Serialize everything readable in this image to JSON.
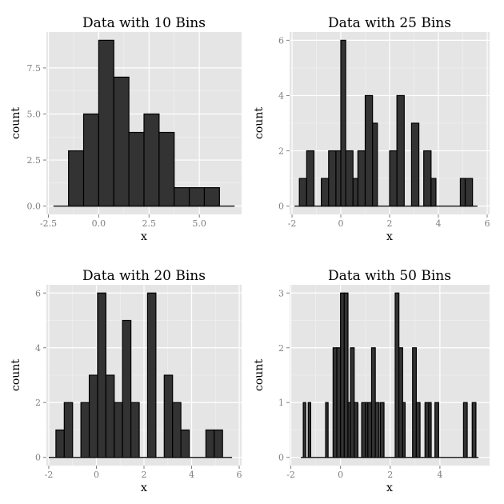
{
  "chart_data": [
    {
      "type": "bar",
      "title": "Data with 10 Bins",
      "xlabel": "x",
      "ylabel": "count",
      "xlim": [
        -2.6,
        7.1
      ],
      "ylim": [
        -0.45,
        9.45
      ],
      "xticks": [
        -2.5,
        0.0,
        2.5,
        5.0
      ],
      "xtick_labels": [
        "-2.5",
        "0.0",
        "2.5",
        "5.0"
      ],
      "yticks": [
        0.0,
        2.5,
        5.0,
        7.5
      ],
      "ytick_labels": [
        "0.0",
        "2.5",
        "5.0",
        "7.5"
      ],
      "baseline_range": [
        -2.25,
        6.75
      ],
      "bins": [
        {
          "x0": -1.5,
          "x1": -0.75,
          "count": 3
        },
        {
          "x0": -0.75,
          "x1": 0.0,
          "count": 5
        },
        {
          "x0": 0.0,
          "x1": 0.75,
          "count": 9
        },
        {
          "x0": 0.75,
          "x1": 1.5,
          "count": 7
        },
        {
          "x0": 1.5,
          "x1": 2.25,
          "count": 4
        },
        {
          "x0": 2.25,
          "x1": 3.0,
          "count": 5
        },
        {
          "x0": 3.0,
          "x1": 3.75,
          "count": 4
        },
        {
          "x0": 3.75,
          "x1": 4.5,
          "count": 1
        },
        {
          "x0": 4.5,
          "x1": 5.25,
          "count": 1
        },
        {
          "x0": 5.25,
          "x1": 6.0,
          "count": 1
        }
      ]
    },
    {
      "type": "bar",
      "title": "Data with 25 Bins",
      "xlabel": "x",
      "ylabel": "count",
      "xlim": [
        -2.1,
        6.1
      ],
      "ylim": [
        -0.3,
        6.3
      ],
      "xticks": [
        -2,
        0,
        2,
        4,
        6
      ],
      "xtick_labels": [
        "-2",
        "0",
        "2",
        "4",
        "6"
      ],
      "yticks": [
        0,
        2,
        4,
        6
      ],
      "ytick_labels": [
        "0",
        "2",
        "4",
        "6"
      ],
      "baseline_range": [
        -1.9,
        5.6
      ],
      "bins": [
        {
          "x0": -1.7,
          "x1": -1.4,
          "count": 1
        },
        {
          "x0": -1.4,
          "x1": -1.1,
          "count": 2
        },
        {
          "x0": -0.8,
          "x1": -0.5,
          "count": 1
        },
        {
          "x0": -0.5,
          "x1": -0.2,
          "count": 2
        },
        {
          "x0": -0.2,
          "x1": 0.0,
          "count": 2
        },
        {
          "x0": 0.0,
          "x1": 0.2,
          "count": 6
        },
        {
          "x0": 0.2,
          "x1": 0.5,
          "count": 2
        },
        {
          "x0": 0.5,
          "x1": 0.7,
          "count": 1
        },
        {
          "x0": 0.7,
          "x1": 1.0,
          "count": 2
        },
        {
          "x0": 1.0,
          "x1": 1.3,
          "count": 4
        },
        {
          "x0": 1.3,
          "x1": 1.5,
          "count": 3
        },
        {
          "x0": 2.0,
          "x1": 2.3,
          "count": 2
        },
        {
          "x0": 2.3,
          "x1": 2.6,
          "count": 4
        },
        {
          "x0": 2.9,
          "x1": 3.2,
          "count": 3
        },
        {
          "x0": 3.4,
          "x1": 3.7,
          "count": 2
        },
        {
          "x0": 3.7,
          "x1": 3.9,
          "count": 1
        },
        {
          "x0": 4.9,
          "x1": 5.1,
          "count": 1
        },
        {
          "x0": 5.1,
          "x1": 5.4,
          "count": 1
        }
      ]
    },
    {
      "type": "bar",
      "title": "Data with 20 Bins",
      "xlabel": "x",
      "ylabel": "count",
      "xlim": [
        -2.1,
        6.1
      ],
      "ylim": [
        -0.3,
        6.3
      ],
      "xticks": [
        -2,
        0,
        2,
        4,
        6
      ],
      "xtick_labels": [
        "-2",
        "0",
        "2",
        "4",
        "6"
      ],
      "yticks": [
        0,
        2,
        4,
        6
      ],
      "ytick_labels": [
        "0",
        "2",
        "4",
        "6"
      ],
      "baseline_range": [
        -2.0,
        5.7
      ],
      "bins": [
        {
          "x0": -1.7,
          "x1": -1.35,
          "count": 1
        },
        {
          "x0": -1.35,
          "x1": -1.0,
          "count": 2
        },
        {
          "x0": -0.65,
          "x1": -0.3,
          "count": 2
        },
        {
          "x0": -0.3,
          "x1": 0.05,
          "count": 3
        },
        {
          "x0": 0.05,
          "x1": 0.4,
          "count": 6
        },
        {
          "x0": 0.4,
          "x1": 0.75,
          "count": 3
        },
        {
          "x0": 0.75,
          "x1": 1.1,
          "count": 2
        },
        {
          "x0": 1.1,
          "x1": 1.45,
          "count": 5
        },
        {
          "x0": 1.45,
          "x1": 1.8,
          "count": 2
        },
        {
          "x0": 2.15,
          "x1": 2.5,
          "count": 6
        },
        {
          "x0": 2.85,
          "x1": 3.2,
          "count": 3
        },
        {
          "x0": 3.2,
          "x1": 3.55,
          "count": 2
        },
        {
          "x0": 3.55,
          "x1": 3.9,
          "count": 1
        },
        {
          "x0": 4.6,
          "x1": 4.95,
          "count": 1
        },
        {
          "x0": 4.95,
          "x1": 5.3,
          "count": 1
        }
      ]
    },
    {
      "type": "bar",
      "title": "Data with 50 Bins",
      "xlabel": "x",
      "ylabel": "count",
      "xlim": [
        -2.05,
        6.0
      ],
      "ylim": [
        -0.15,
        3.15
      ],
      "xticks": [
        -2,
        0,
        2,
        4
      ],
      "xtick_labels": [
        "-2",
        "0",
        "2",
        "4"
      ],
      "yticks": [
        0,
        1,
        2,
        3
      ],
      "ytick_labels": [
        "0",
        "1",
        "2",
        "3"
      ],
      "baseline_range": [
        -1.6,
        5.55
      ],
      "bins": [
        {
          "x0": -1.5,
          "x1": -1.4,
          "count": 1
        },
        {
          "x0": -1.3,
          "x1": -1.2,
          "count": 1
        },
        {
          "x0": -0.6,
          "x1": -0.5,
          "count": 1
        },
        {
          "x0": -0.3,
          "x1": -0.15,
          "count": 2
        },
        {
          "x0": -0.15,
          "x1": 0.0,
          "count": 2
        },
        {
          "x0": 0.0,
          "x1": 0.15,
          "count": 3
        },
        {
          "x0": 0.15,
          "x1": 0.3,
          "count": 3
        },
        {
          "x0": 0.3,
          "x1": 0.4,
          "count": 1
        },
        {
          "x0": 0.4,
          "x1": 0.55,
          "count": 2
        },
        {
          "x0": 0.55,
          "x1": 0.7,
          "count": 1
        },
        {
          "x0": 0.85,
          "x1": 1.0,
          "count": 1
        },
        {
          "x0": 1.0,
          "x1": 1.1,
          "count": 1
        },
        {
          "x0": 1.1,
          "x1": 1.25,
          "count": 1
        },
        {
          "x0": 1.25,
          "x1": 1.4,
          "count": 2
        },
        {
          "x0": 1.4,
          "x1": 1.55,
          "count": 1
        },
        {
          "x0": 1.6,
          "x1": 1.75,
          "count": 1
        },
        {
          "x0": 2.2,
          "x1": 2.35,
          "count": 3
        },
        {
          "x0": 2.35,
          "x1": 2.5,
          "count": 2
        },
        {
          "x0": 2.5,
          "x1": 2.6,
          "count": 1
        },
        {
          "x0": 2.9,
          "x1": 3.05,
          "count": 2
        },
        {
          "x0": 3.05,
          "x1": 3.2,
          "count": 1
        },
        {
          "x0": 3.4,
          "x1": 3.55,
          "count": 1
        },
        {
          "x0": 3.55,
          "x1": 3.65,
          "count": 1
        },
        {
          "x0": 3.8,
          "x1": 3.95,
          "count": 1
        },
        {
          "x0": 4.95,
          "x1": 5.1,
          "count": 1
        },
        {
          "x0": 5.3,
          "x1": 5.45,
          "count": 1
        }
      ]
    }
  ]
}
